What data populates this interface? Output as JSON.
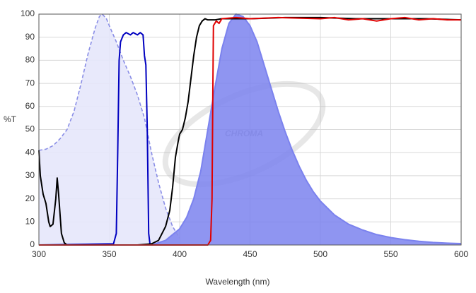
{
  "chart_data": {
    "type": "line",
    "watermark": "CHROMA",
    "xlabel": "Wavelength (nm)",
    "ylabel": "%T",
    "xlim": [
      300,
      600
    ],
    "ylim": [
      0,
      100
    ],
    "xticks": [
      300,
      350,
      400,
      450,
      500,
      550,
      600
    ],
    "yticks": [
      0,
      10,
      20,
      30,
      40,
      50,
      60,
      70,
      80,
      90,
      100
    ],
    "grid": true,
    "series": [
      {
        "color": "#8a8ee6",
        "fill": "#e6e7fb",
        "dashed": true,
        "x": [
          300,
          305,
          310,
          315,
          320,
          325,
          330,
          335,
          340,
          343,
          345,
          348,
          350,
          355,
          360,
          365,
          370,
          375,
          380,
          385,
          390,
          395,
          400
        ],
        "values": [
          41,
          41.5,
          43,
          46,
          50,
          58,
          70,
          83,
          94,
          99,
          100,
          98,
          95,
          88,
          80,
          73,
          65,
          55,
          40,
          27,
          16,
          8,
          3
        ]
      },
      {
        "color": "#7b82ee",
        "fill": "#7b82ee",
        "dashed": false,
        "x": [
          380,
          390,
          400,
          405,
          410,
          415,
          420,
          425,
          430,
          435,
          440,
          445,
          450,
          455,
          460,
          465,
          470,
          475,
          480,
          485,
          490,
          495,
          500,
          510,
          520,
          530,
          540,
          550,
          560,
          570,
          580,
          590,
          600
        ],
        "values": [
          0,
          2,
          7,
          12,
          20,
          32,
          50,
          68,
          85,
          96,
          100,
          99,
          95,
          88,
          78,
          68,
          58,
          49,
          41,
          34,
          28,
          23,
          19,
          13,
          9,
          6.5,
          4.5,
          3.2,
          2.3,
          1.6,
          1.1,
          0.8,
          0.6
        ]
      },
      {
        "color": "#0000c0",
        "dashed": false,
        "x": [
          300,
          353,
          355,
          356,
          357,
          358,
          360,
          362,
          365,
          367,
          370,
          372,
          374,
          375,
          376,
          377,
          378,
          379,
          382
        ],
        "values": [
          0,
          0.5,
          5,
          40,
          80,
          88,
          91,
          92,
          91,
          92,
          91,
          92,
          91,
          82,
          78,
          50,
          5,
          0,
          0
        ]
      },
      {
        "color": "#000000",
        "dashed": false,
        "x": [
          300,
          301,
          303,
          305,
          307,
          308,
          310,
          312,
          313,
          314,
          316,
          318,
          320,
          370,
          380,
          385,
          390,
          393,
          395,
          397,
          399,
          400,
          402,
          404,
          406,
          408,
          410,
          412,
          414,
          416,
          418,
          420,
          425,
          430,
          440,
          450,
          475,
          500,
          525,
          550,
          575,
          600
        ],
        "values": [
          41,
          30,
          22,
          18,
          10,
          8,
          9,
          20,
          29,
          22,
          5,
          1,
          0,
          0,
          0.5,
          2,
          8,
          15,
          25,
          38,
          45,
          48,
          50,
          55,
          62,
          72,
          82,
          90,
          95,
          97,
          98,
          97.5,
          97.5,
          98,
          98,
          98,
          98.5,
          98.5,
          98,
          98,
          98,
          97.5
        ]
      },
      {
        "color": "#e00000",
        "dashed": false,
        "x": [
          300,
          420,
          422,
          423,
          423.5,
          424,
          426,
          428,
          430,
          440,
          450,
          470,
          500,
          510,
          520,
          530,
          540,
          550,
          560,
          570,
          580,
          590,
          600
        ],
        "values": [
          0,
          0,
          2,
          20,
          60,
          95,
          97,
          96,
          98,
          98.5,
          98,
          98.5,
          98,
          98.5,
          97.5,
          98,
          97,
          98,
          98.5,
          97.5,
          98,
          97.5,
          97.5
        ]
      }
    ]
  }
}
